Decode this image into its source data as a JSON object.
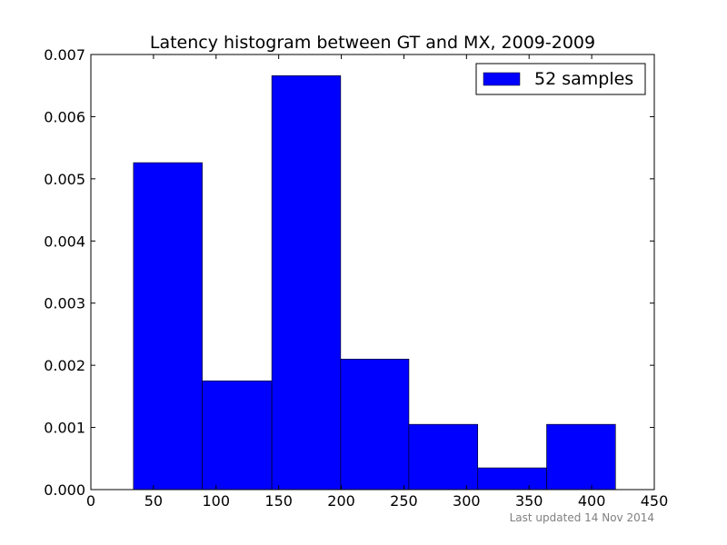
{
  "chart_data": {
    "type": "bar",
    "title": "Latency histogram between GT and MX, 2009-2009",
    "xlabel": "",
    "ylabel": "",
    "xlim": [
      0,
      450
    ],
    "ylim": [
      0,
      0.007
    ],
    "x_ticks": [
      "0",
      "50",
      "100",
      "150",
      "200",
      "250",
      "300",
      "350",
      "400",
      "450"
    ],
    "y_ticks": [
      "0.000",
      "0.001",
      "0.002",
      "0.003",
      "0.004",
      "0.005",
      "0.006",
      "0.007"
    ],
    "grid": false,
    "legend_position": "top-right",
    "bins": [
      {
        "start": 34,
        "end": 89,
        "value": 0.00526
      },
      {
        "start": 89,
        "end": 144.5,
        "value": 0.00175
      },
      {
        "start": 144.5,
        "end": 199.5,
        "value": 0.00666
      },
      {
        "start": 199.5,
        "end": 254,
        "value": 0.0021
      },
      {
        "start": 254,
        "end": 309,
        "value": 0.00105
      },
      {
        "start": 309,
        "end": 364,
        "value": 0.00035
      },
      {
        "start": 364,
        "end": 419,
        "value": 0.00105
      }
    ],
    "series": [
      {
        "name": "52 samples",
        "color": "#0000ff"
      }
    ]
  },
  "footer": {
    "text": "Last updated 14 Nov 2014"
  }
}
